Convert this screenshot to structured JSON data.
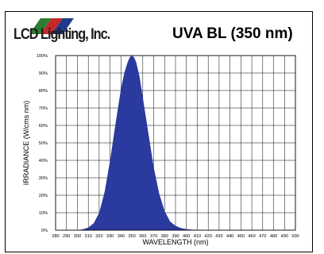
{
  "logo": {
    "text": "LCD Lighting, Inc.",
    "stripe_colors": [
      "#2e7d32",
      "#c62828",
      "#1e3a8a"
    ]
  },
  "chart_data": {
    "type": "area",
    "title": "UVA BL (350 nm)",
    "xlabel": "WAVELENGTH (nm)",
    "ylabel": "IRRADIANCE (W/cms nm)",
    "xlim": [
      280,
      500
    ],
    "ylim": [
      0,
      100
    ],
    "x_ticks": [
      "280",
      "290",
      "300",
      "310",
      "320",
      "330",
      "340",
      "350",
      "360",
      "370",
      "380",
      "390",
      "400",
      "410",
      "420",
      "430",
      "440",
      "450",
      "460",
      "470",
      "480",
      "490",
      "500"
    ],
    "y_ticks": [
      "0%",
      "10%",
      "20%",
      "30%",
      "40%",
      "50%",
      "60%",
      "70%",
      "80%",
      "90%",
      "100%"
    ],
    "grid": true,
    "fill_color": "#2b3a9e",
    "series": [
      {
        "x": [
          300,
          305,
          310,
          315,
          320,
          325,
          330,
          335,
          340,
          343,
          346,
          348,
          350,
          352,
          354,
          357,
          360,
          365,
          370,
          375,
          380,
          385,
          390,
          395,
          400,
          405,
          410,
          415,
          420,
          425,
          430
        ],
        "y": [
          0,
          0.5,
          1.5,
          4,
          10,
          22,
          40,
          61,
          81,
          90,
          96,
          99,
          100,
          99,
          96,
          88,
          76,
          56,
          36,
          21,
          11,
          5,
          2.5,
          1.2,
          0.6,
          0.3,
          0.2,
          0.1,
          0.05,
          0,
          0
        ]
      }
    ]
  }
}
